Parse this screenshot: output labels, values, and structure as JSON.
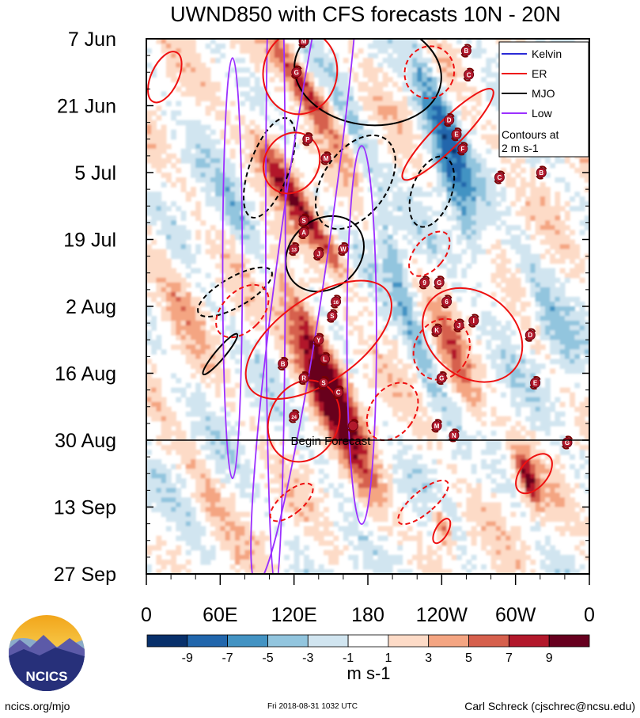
{
  "chart_data": {
    "type": "heatmap",
    "title": "UWND850 with CFS forecasts  10N - 20N",
    "ylabel": "",
    "xlabel": "",
    "y_tick_labels": [
      "7 Jun",
      "21 Jun",
      "5 Jul",
      "19 Jul",
      "2 Aug",
      "16 Aug",
      "30 Aug",
      "13 Sep",
      "27 Sep"
    ],
    "x_tick_labels": [
      "0",
      "60E",
      "120E",
      "180",
      "120W",
      "60W",
      "0"
    ],
    "x_range_deg": [
      0,
      360
    ],
    "y_range_days": [
      0,
      112
    ],
    "forecast_start_day": 84,
    "forecast_label": "Begin Forecast",
    "colorbar": {
      "unit": "m s-1",
      "labels": [
        "-9",
        "-7",
        "-5",
        "-3",
        "-1",
        "1",
        "3",
        "5",
        "7",
        "9"
      ],
      "colors": [
        "#08306b",
        "#2166ac",
        "#4393c3",
        "#92c5de",
        "#d1e5f0",
        "#ffffff",
        "#fddbc7",
        "#f4a582",
        "#d6604d",
        "#b2182b",
        "#67001f"
      ]
    },
    "legend": {
      "position": "top-right",
      "entries": [
        {
          "name": "Kelvin",
          "color": "#2a2ad6"
        },
        {
          "name": "ER",
          "color": "#ee1111"
        },
        {
          "name": "MJO",
          "color": "#000000"
        },
        {
          "name": "Low",
          "color": "#9b30ff"
        }
      ],
      "note": [
        "Contours at",
        "2 m s-1"
      ]
    },
    "anomaly_bands": [
      {
        "lon": 128,
        "day": 10,
        "slope": 2.0,
        "amp": 8,
        "w": 12,
        "len": 12
      },
      {
        "lon": 132,
        "day": 38,
        "slope": 2.2,
        "amp": 7,
        "w": 10,
        "len": 14
      },
      {
        "lon": 142,
        "day": 66,
        "slope": 1.6,
        "amp": 10,
        "w": 12,
        "len": 16
      },
      {
        "lon": 145,
        "day": 75,
        "slope": 1.6,
        "amp": 9,
        "w": 12,
        "len": 14
      },
      {
        "lon": 105,
        "day": 25,
        "slope": 1.4,
        "amp": 5,
        "w": 14,
        "len": 10
      },
      {
        "lon": 240,
        "day": 16,
        "slope": 1.2,
        "amp": -6,
        "w": 10,
        "len": 18
      },
      {
        "lon": 250,
        "day": 32,
        "slope": 1.2,
        "amp": -5,
        "w": 10,
        "len": 20
      },
      {
        "lon": 255,
        "day": 70,
        "slope": 1.0,
        "amp": 5,
        "w": 10,
        "len": 14
      },
      {
        "lon": 218,
        "day": 62,
        "slope": 1.1,
        "amp": -4,
        "w": 8,
        "len": 14
      },
      {
        "lon": 80,
        "day": 40,
        "slope": 1.5,
        "amp": -3,
        "w": 10,
        "len": 12
      },
      {
        "lon": 200,
        "day": 45,
        "slope": 1.0,
        "amp": -3,
        "w": 8,
        "len": 14
      },
      {
        "lon": 310,
        "day": 92,
        "slope": 1.0,
        "amp": 8,
        "w": 8,
        "len": 6
      },
      {
        "lon": 240,
        "day": 102,
        "slope": 1.0,
        "amp": 7,
        "w": 6,
        "len": 4
      },
      {
        "lon": 20,
        "day": 50,
        "slope": 1.5,
        "amp": 3,
        "w": 12,
        "len": 14
      },
      {
        "lon": 170,
        "day": 20,
        "slope": 1.2,
        "amp": -3,
        "w": 10,
        "len": 12
      },
      {
        "lon": 330,
        "day": 60,
        "slope": 1.2,
        "amp": -3,
        "w": 10,
        "len": 14
      },
      {
        "lon": 50,
        "day": 95,
        "slope": 1.4,
        "amp": 3,
        "w": 10,
        "len": 10
      },
      {
        "lon": 180,
        "day": 96,
        "slope": 1.0,
        "amp": 3,
        "w": 12,
        "len": 10
      }
    ],
    "contours": [
      {
        "kind": "MJO",
        "style": "solid",
        "lon": 180,
        "day": 7,
        "rx": 60,
        "ry": 5,
        "rot": 8
      },
      {
        "kind": "MJO",
        "style": "solid",
        "lon": 145,
        "day": 45,
        "rx": 28,
        "ry": 4,
        "rot": 50
      },
      {
        "kind": "MJO",
        "style": "dashed",
        "lon": 100,
        "day": 27,
        "rx": 16,
        "ry": 5,
        "rot": 20
      },
      {
        "kind": "MJO",
        "style": "dashed",
        "lon": 170,
        "day": 30,
        "rx": 26,
        "ry": 5,
        "rot": 35
      },
      {
        "kind": "MJO",
        "style": "dashed",
        "lon": 232,
        "day": 32,
        "rx": 16,
        "ry": 3.5,
        "rot": 20
      },
      {
        "kind": "MJO",
        "style": "dashed",
        "lon": 72,
        "day": 53,
        "rx": 12,
        "ry": 4,
        "rot": 60
      },
      {
        "kind": "MJO",
        "style": "solid",
        "lon": 60,
        "day": 66,
        "rx": 4,
        "ry": 2.5,
        "rot": 40
      },
      {
        "kind": "Low",
        "style": "solid",
        "lon": 105,
        "day": 40,
        "rx": 8,
        "ry": 34,
        "rot": 0
      },
      {
        "kind": "Low",
        "style": "solid",
        "lon": 70,
        "day": 48,
        "rx": 8,
        "ry": 20,
        "rot": 0
      },
      {
        "kind": "Low",
        "style": "solid",
        "lon": 130,
        "day": 40,
        "rx": 20,
        "ry": 34,
        "rot": 8
      },
      {
        "kind": "Low",
        "style": "solid",
        "lon": 175,
        "day": 62,
        "rx": 12,
        "ry": 18,
        "rot": 0
      },
      {
        "kind": "ER",
        "style": "solid",
        "lon": 125,
        "day": 7,
        "rx": 30,
        "ry": 4,
        "rot": 10
      },
      {
        "kind": "ER",
        "style": "solid",
        "lon": 15,
        "day": 8,
        "rx": 11,
        "ry": 2.6,
        "rot": 25
      },
      {
        "kind": "ER",
        "style": "solid",
        "lon": 245,
        "day": 20,
        "rx": 11,
        "ry": 6,
        "rot": 45
      },
      {
        "kind": "ER",
        "style": "solid",
        "lon": 118,
        "day": 26,
        "rx": 22,
        "ry": 3,
        "rot": 30
      },
      {
        "kind": "ER",
        "style": "solid",
        "lon": 140,
        "day": 63,
        "rx": 34,
        "ry": 8,
        "rot": 55
      },
      {
        "kind": "ER",
        "style": "solid",
        "lon": 128,
        "day": 80,
        "rx": 28,
        "ry": 4,
        "rot": 25
      },
      {
        "kind": "ER",
        "style": "solid",
        "lon": 265,
        "day": 62,
        "rx": 44,
        "ry": 4,
        "rot": 38
      },
      {
        "kind": "ER",
        "style": "solid",
        "lon": 315,
        "day": 91,
        "rx": 11,
        "ry": 2.2,
        "rot": 40
      },
      {
        "kind": "ER",
        "style": "dashed",
        "lon": 78,
        "day": 57,
        "rx": 16,
        "ry": 3,
        "rot": 45
      },
      {
        "kind": "ER",
        "style": "dashed",
        "lon": 230,
        "day": 45,
        "rx": 12,
        "ry": 2.5,
        "rot": 40
      },
      {
        "kind": "ER",
        "style": "dashed",
        "lon": 200,
        "day": 78,
        "rx": 18,
        "ry": 3,
        "rot": 35
      },
      {
        "kind": "ER",
        "style": "dashed",
        "lon": 240,
        "day": 65,
        "rx": 22,
        "ry": 3,
        "rot": 30
      },
      {
        "kind": "ER",
        "style": "dashed",
        "lon": 225,
        "day": 97,
        "rx": 9,
        "ry": 3,
        "rot": 50
      },
      {
        "kind": "ER",
        "style": "dashed",
        "lon": 118,
        "day": 97,
        "rx": 9,
        "ry": 2.5,
        "rot": 50
      },
      {
        "kind": "ER",
        "style": "dashed",
        "lon": 230,
        "day": 7,
        "rx": 20,
        "ry": 2.5,
        "rot": 20
      },
      {
        "kind": "ER",
        "style": "solid",
        "lon": 240,
        "day": 103,
        "rx": 5,
        "ry": 1.3,
        "rot": 30
      }
    ],
    "storms": [
      {
        "label": "M",
        "lon": 128,
        "day": 0.5
      },
      {
        "label": "G",
        "lon": 122,
        "day": 7
      },
      {
        "label": "B",
        "lon": 260,
        "day": 2.5
      },
      {
        "label": "C",
        "lon": 262,
        "day": 7.5
      },
      {
        "label": "D",
        "lon": 246,
        "day": 17
      },
      {
        "label": "E",
        "lon": 252,
        "day": 20
      },
      {
        "label": "F",
        "lon": 257,
        "day": 23
      },
      {
        "label": "P",
        "lon": 131,
        "day": 21
      },
      {
        "label": "M",
        "lon": 146,
        "day": 25
      },
      {
        "label": "C",
        "lon": 287,
        "day": 29
      },
      {
        "label": "B",
        "lon": 321,
        "day": 28
      },
      {
        "label": "S",
        "lon": 128,
        "day": 38
      },
      {
        "label": "A",
        "lon": 128,
        "day": 40.5
      },
      {
        "label": "13",
        "lon": 120,
        "day": 44
      },
      {
        "label": "J",
        "lon": 140,
        "day": 45
      },
      {
        "label": "W",
        "lon": 160,
        "day": 44
      },
      {
        "label": "9",
        "lon": 226,
        "day": 51
      },
      {
        "label": "G",
        "lon": 238,
        "day": 51
      },
      {
        "label": "6",
        "lon": 244,
        "day": 55
      },
      {
        "label": "16",
        "lon": 154,
        "day": 55
      },
      {
        "label": "S",
        "lon": 151,
        "day": 58
      },
      {
        "label": "J",
        "lon": 254,
        "day": 60
      },
      {
        "label": "K",
        "lon": 236,
        "day": 61
      },
      {
        "label": "I",
        "lon": 266,
        "day": 59
      },
      {
        "label": "D",
        "lon": 312,
        "day": 62
      },
      {
        "label": "Y",
        "lon": 140,
        "day": 63
      },
      {
        "label": "L",
        "lon": 145,
        "day": 67
      },
      {
        "label": "B",
        "lon": 111,
        "day": 68
      },
      {
        "label": "R",
        "lon": 128,
        "day": 71
      },
      {
        "label": "S",
        "lon": 144,
        "day": 72
      },
      {
        "label": "E",
        "lon": 316,
        "day": 72
      },
      {
        "label": "C",
        "lon": 156,
        "day": 74
      },
      {
        "label": "G",
        "lon": 240,
        "day": 71
      },
      {
        "label": "24",
        "lon": 120,
        "day": 79
      },
      {
        "label": "M",
        "lon": 236,
        "day": 81
      },
      {
        "label": "N",
        "lon": 250,
        "day": 83
      },
      {
        "label": "G",
        "lon": 342,
        "day": 84.5
      },
      {
        "label": "",
        "lon": 168,
        "day": 81
      }
    ]
  },
  "footer": {
    "logo_text": "NCICS",
    "site": "ncics.org/mjo",
    "timestamp": "Fri 2018-08-31 1032 UTC",
    "author": "Carl Schreck (cjschrec@ncsu.edu)"
  }
}
